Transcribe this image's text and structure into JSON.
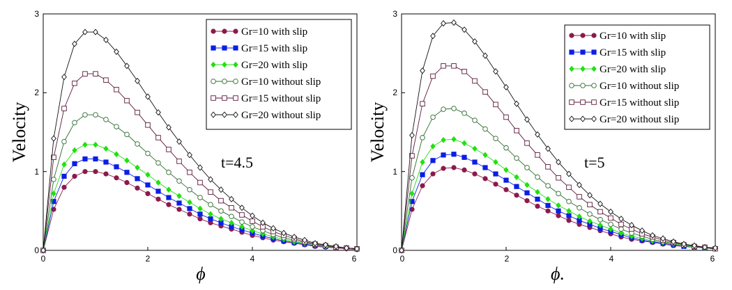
{
  "figure": {
    "panels": [
      {
        "annotation": "t=4.5",
        "ylabel": "Velocity",
        "xlabel": "ϕ",
        "xlim": [
          0,
          6
        ],
        "ylim": [
          0,
          3
        ],
        "xticks": [
          "0",
          "2",
          "4",
          "6"
        ],
        "yticks": [
          "0",
          "1",
          "2",
          "3"
        ]
      },
      {
        "annotation": "t=5",
        "ylabel": "Velocity",
        "xlabel": "ϕ.",
        "xlim": [
          0,
          6
        ],
        "ylim": [
          0,
          3
        ],
        "xticks": [
          "0",
          "2",
          "4",
          "6"
        ],
        "yticks": [
          "0",
          "1",
          "2",
          "3"
        ]
      }
    ]
  },
  "chart_data": [
    {
      "type": "line",
      "annotation": "t=4.5",
      "xlabel": "ϕ",
      "ylabel": "Velocity",
      "xlim": [
        0,
        6
      ],
      "ylim": [
        0,
        3
      ],
      "legend_position": "top-right",
      "x": [
        0,
        0.2,
        0.4,
        0.6,
        0.8,
        1.0,
        1.2,
        1.4,
        1.6,
        1.8,
        2.0,
        2.2,
        2.4,
        2.6,
        2.8,
        3.0,
        3.2,
        3.4,
        3.6,
        3.8,
        4.0,
        4.2,
        4.4,
        4.6,
        4.8,
        5.0,
        5.2,
        5.4,
        5.6,
        5.8,
        6.0
      ],
      "series": [
        {
          "name": "Gr=10  with slip",
          "marker": "filled-circle",
          "color": "#8B1A4A",
          "values": [
            0,
            0.52,
            0.8,
            0.94,
            1.0,
            1.0,
            0.97,
            0.92,
            0.86,
            0.79,
            0.72,
            0.65,
            0.58,
            0.52,
            0.46,
            0.4,
            0.35,
            0.31,
            0.27,
            0.23,
            0.19,
            0.16,
            0.13,
            0.11,
            0.09,
            0.07,
            0.05,
            0.04,
            0.03,
            0.02,
            0.01
          ]
        },
        {
          "name": "Gr=15 with slip",
          "marker": "filled-square",
          "color": "#0A1EE6",
          "values": [
            0,
            0.62,
            0.94,
            1.1,
            1.16,
            1.16,
            1.12,
            1.06,
            0.99,
            0.91,
            0.83,
            0.75,
            0.67,
            0.6,
            0.53,
            0.46,
            0.4,
            0.35,
            0.3,
            0.26,
            0.22,
            0.18,
            0.15,
            0.12,
            0.1,
            0.08,
            0.06,
            0.05,
            0.04,
            0.03,
            0.02
          ]
        },
        {
          "name": "Gr=20 with slip",
          "marker": "filled-diamond",
          "color": "#22E010",
          "values": [
            0,
            0.72,
            1.09,
            1.27,
            1.34,
            1.34,
            1.29,
            1.22,
            1.14,
            1.05,
            0.96,
            0.86,
            0.77,
            0.69,
            0.61,
            0.53,
            0.46,
            0.4,
            0.35,
            0.3,
            0.25,
            0.21,
            0.17,
            0.14,
            0.11,
            0.09,
            0.07,
            0.05,
            0.04,
            0.03,
            0.02
          ]
        },
        {
          "name": "Gr=10 without slip",
          "marker": "open-circle",
          "color": "#2E6B2E",
          "values": [
            0,
            0.9,
            1.38,
            1.62,
            1.72,
            1.72,
            1.66,
            1.57,
            1.47,
            1.35,
            1.23,
            1.11,
            0.99,
            0.88,
            0.77,
            0.67,
            0.58,
            0.5,
            0.43,
            0.36,
            0.3,
            0.25,
            0.2,
            0.16,
            0.13,
            0.1,
            0.08,
            0.06,
            0.04,
            0.03,
            0.02
          ]
        },
        {
          "name": "Gr=15 without slip",
          "marker": "open-square",
          "color": "#5A1838",
          "values": [
            0,
            1.18,
            1.8,
            2.12,
            2.24,
            2.24,
            2.16,
            2.04,
            1.9,
            1.75,
            1.59,
            1.43,
            1.28,
            1.13,
            0.99,
            0.86,
            0.74,
            0.63,
            0.54,
            0.45,
            0.37,
            0.3,
            0.24,
            0.19,
            0.15,
            0.11,
            0.08,
            0.06,
            0.04,
            0.03,
            0.02
          ]
        },
        {
          "name": "Gr=20 without slip",
          "marker": "open-diamond",
          "color": "#111111",
          "values": [
            0,
            1.42,
            2.2,
            2.62,
            2.77,
            2.77,
            2.67,
            2.52,
            2.34,
            2.15,
            1.95,
            1.75,
            1.56,
            1.38,
            1.21,
            1.05,
            0.9,
            0.77,
            0.65,
            0.54,
            0.44,
            0.35,
            0.28,
            0.22,
            0.17,
            0.13,
            0.09,
            0.07,
            0.05,
            0.03,
            0.02
          ]
        }
      ]
    },
    {
      "type": "line",
      "annotation": "t=5",
      "xlabel": "ϕ.",
      "ylabel": "Velocity",
      "xlim": [
        0,
        6
      ],
      "ylim": [
        0,
        3
      ],
      "legend_position": "top-right",
      "x": [
        0,
        0.2,
        0.4,
        0.6,
        0.8,
        1.0,
        1.2,
        1.4,
        1.6,
        1.8,
        2.0,
        2.2,
        2.4,
        2.6,
        2.8,
        3.0,
        3.2,
        3.4,
        3.6,
        3.8,
        4.0,
        4.2,
        4.4,
        4.6,
        4.8,
        5.0,
        5.2,
        5.4,
        5.6,
        5.8,
        6.0
      ],
      "series": [
        {
          "name": "Gr=10  with slip",
          "marker": "filled-circle",
          "color": "#8B1A4A",
          "values": [
            0,
            0.52,
            0.82,
            0.97,
            1.04,
            1.05,
            1.02,
            0.97,
            0.91,
            0.84,
            0.77,
            0.7,
            0.63,
            0.56,
            0.5,
            0.44,
            0.38,
            0.33,
            0.29,
            0.25,
            0.21,
            0.17,
            0.14,
            0.12,
            0.1,
            0.08,
            0.06,
            0.05,
            0.04,
            0.03,
            0.02
          ]
        },
        {
          "name": "Gr=15 with slip",
          "marker": "filled-square",
          "color": "#0A1EE6",
          "values": [
            0,
            0.62,
            0.96,
            1.14,
            1.21,
            1.22,
            1.18,
            1.12,
            1.05,
            0.97,
            0.89,
            0.81,
            0.73,
            0.65,
            0.57,
            0.5,
            0.44,
            0.38,
            0.33,
            0.28,
            0.24,
            0.2,
            0.16,
            0.13,
            0.11,
            0.09,
            0.07,
            0.05,
            0.04,
            0.03,
            0.02
          ]
        },
        {
          "name": "Gr=20 with slip",
          "marker": "filled-diamond",
          "color": "#22E010",
          "values": [
            0,
            0.72,
            1.12,
            1.32,
            1.4,
            1.41,
            1.36,
            1.29,
            1.21,
            1.12,
            1.02,
            0.93,
            0.83,
            0.74,
            0.65,
            0.57,
            0.5,
            0.43,
            0.37,
            0.32,
            0.27,
            0.22,
            0.18,
            0.15,
            0.12,
            0.1,
            0.08,
            0.06,
            0.04,
            0.03,
            0.02
          ]
        },
        {
          "name": "Gr=10 without slip",
          "marker": "open-circle",
          "color": "#2E6B2E",
          "values": [
            0,
            0.92,
            1.43,
            1.69,
            1.79,
            1.8,
            1.74,
            1.65,
            1.54,
            1.42,
            1.3,
            1.17,
            1.05,
            0.93,
            0.82,
            0.72,
            0.62,
            0.54,
            0.46,
            0.39,
            0.33,
            0.27,
            0.22,
            0.18,
            0.14,
            0.11,
            0.09,
            0.07,
            0.05,
            0.03,
            0.02
          ]
        },
        {
          "name": "Gr=15 without slip",
          "marker": "open-square",
          "color": "#5A1838",
          "values": [
            0,
            1.2,
            1.86,
            2.21,
            2.34,
            2.34,
            2.27,
            2.15,
            2.01,
            1.85,
            1.69,
            1.52,
            1.36,
            1.21,
            1.06,
            0.92,
            0.8,
            0.68,
            0.58,
            0.49,
            0.41,
            0.33,
            0.27,
            0.21,
            0.17,
            0.13,
            0.1,
            0.07,
            0.05,
            0.04,
            0.02
          ]
        },
        {
          "name": "Gr=20 without slip",
          "marker": "open-diamond",
          "color": "#111111",
          "values": [
            0,
            1.46,
            2.28,
            2.72,
            2.88,
            2.89,
            2.8,
            2.65,
            2.47,
            2.27,
            2.07,
            1.86,
            1.66,
            1.47,
            1.29,
            1.12,
            0.97,
            0.83,
            0.7,
            0.59,
            0.49,
            0.4,
            0.32,
            0.25,
            0.19,
            0.15,
            0.11,
            0.08,
            0.06,
            0.04,
            0.03
          ]
        }
      ]
    }
  ]
}
